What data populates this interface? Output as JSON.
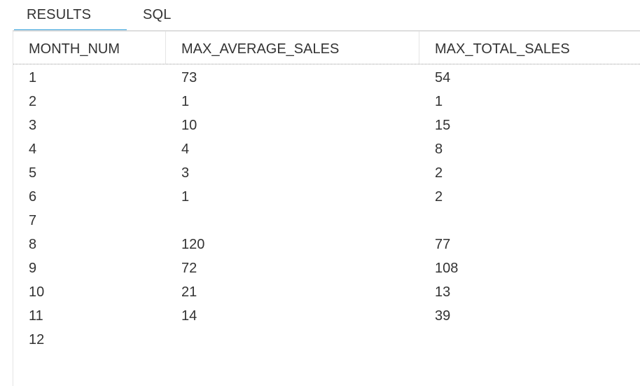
{
  "tabs": [
    {
      "label": "RESULTS",
      "active": true
    },
    {
      "label": "SQL",
      "active": false
    }
  ],
  "colors": {
    "accent": "#2f9ed9",
    "text": "#333333",
    "border": "#dddddd"
  },
  "table": {
    "columns": [
      "MONTH_NUM",
      "MAX_AVERAGE_SALES",
      "MAX_TOTAL_SALES"
    ],
    "rows": [
      [
        "1",
        "73",
        "54"
      ],
      [
        "2",
        "1",
        "1"
      ],
      [
        "3",
        "10",
        "15"
      ],
      [
        "4",
        "4",
        "8"
      ],
      [
        "5",
        "3",
        "2"
      ],
      [
        "6",
        "1",
        "2"
      ],
      [
        "7",
        "",
        ""
      ],
      [
        "8",
        "120",
        "77"
      ],
      [
        "9",
        "72",
        "108"
      ],
      [
        "10",
        "21",
        "13"
      ],
      [
        "11",
        "14",
        "39"
      ],
      [
        "12",
        "",
        ""
      ]
    ]
  }
}
